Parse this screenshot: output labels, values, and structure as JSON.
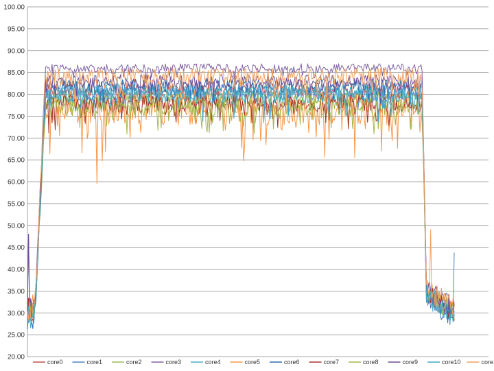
{
  "chart_data": {
    "type": "line",
    "title": "",
    "xlabel": "",
    "ylabel": "",
    "ylim": [
      20,
      100
    ],
    "y_ticks": [
      "20.00",
      "25.00",
      "30.00",
      "35.00",
      "40.00",
      "45.00",
      "50.00",
      "55.00",
      "60.00",
      "65.00",
      "70.00",
      "75.00",
      "80.00",
      "85.00",
      "90.00",
      "95.00",
      "100.00"
    ],
    "grid": "horizontal",
    "legend_position": "bottom",
    "sample_count": 400,
    "series": [
      {
        "name": "core0",
        "color": "#c0504d",
        "level": 81,
        "noise": 1.5,
        "idle": 30.5
      },
      {
        "name": "core1",
        "color": "#4f81bd",
        "level": 80,
        "noise": 1.5,
        "idle": 29.5
      },
      {
        "name": "core2",
        "color": "#9bbb59",
        "level": 79,
        "noise": 1.5,
        "idle": 30.0
      },
      {
        "name": "core3",
        "color": "#8064a2",
        "level": 86,
        "noise": 1.0,
        "idle": 31.0
      },
      {
        "name": "core4",
        "color": "#4bacc6",
        "level": 81,
        "noise": 1.5,
        "idle": 30.0
      },
      {
        "name": "core5",
        "color": "#f79646",
        "level": 77,
        "noise": 4.0,
        "idle": 31.5
      },
      {
        "name": "core6",
        "color": "#2c6fb3",
        "level": 82,
        "noise": 1.5,
        "idle": 29.0
      },
      {
        "name": "core7",
        "color": "#a5332b",
        "level": 78,
        "noise": 2.0,
        "idle": 30.5
      },
      {
        "name": "core8",
        "color": "#a6b64a",
        "level": 77,
        "noise": 2.0,
        "idle": 30.0
      },
      {
        "name": "core9",
        "color": "#6a4e96",
        "level": 83,
        "noise": 1.5,
        "idle": 31.0
      },
      {
        "name": "core10",
        "color": "#3ea8c8",
        "level": 80,
        "noise": 2.0,
        "idle": 29.5
      },
      {
        "name": "core11",
        "color": "#f0a060",
        "level": 84,
        "noise": 2.0,
        "idle": 31.0
      }
    ]
  }
}
